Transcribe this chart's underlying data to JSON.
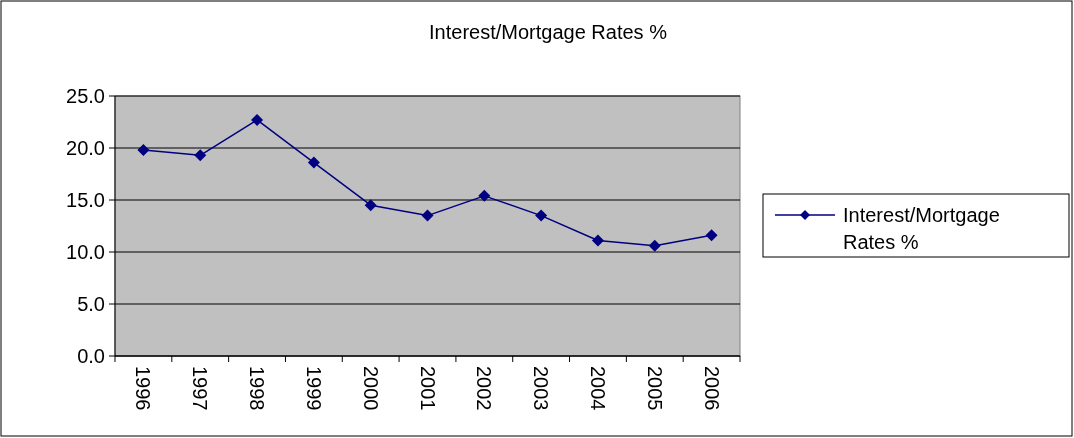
{
  "chart_data": {
    "type": "line",
    "title": "Interest/Mortgage Rates %",
    "categories": [
      "1996",
      "1997",
      "1998",
      "1999",
      "2000",
      "2001",
      "2002",
      "2003",
      "2004",
      "2005",
      "2006"
    ],
    "series": [
      {
        "name": "Interest/Mortgage Rates %",
        "color": "#000080",
        "values": [
          19.8,
          19.3,
          22.7,
          18.6,
          14.5,
          13.5,
          15.4,
          13.5,
          11.1,
          10.6,
          11.6
        ]
      }
    ],
    "ylim": [
      0,
      25
    ],
    "yticks": [
      {
        "value": 0,
        "label": "0.0"
      },
      {
        "value": 5,
        "label": "5.0"
      },
      {
        "value": 10,
        "label": "10.0"
      },
      {
        "value": 15,
        "label": "15.0"
      },
      {
        "value": 20,
        "label": "20.0"
      },
      {
        "value": 25,
        "label": "25.0"
      }
    ],
    "grid": "y",
    "legend": "right",
    "marker": "diamond",
    "line_style": "solid"
  }
}
